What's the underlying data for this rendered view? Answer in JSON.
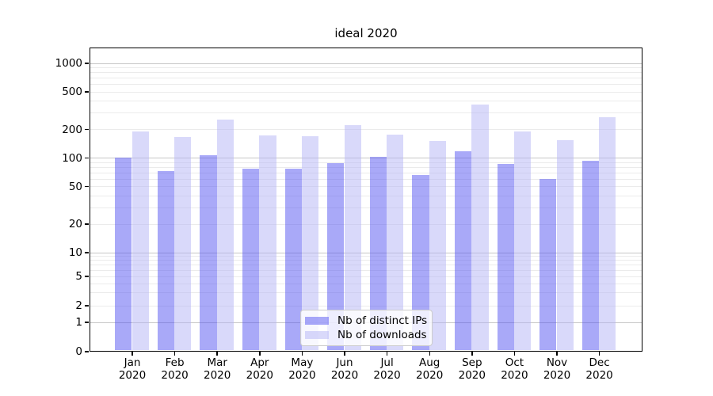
{
  "title": "ideal 2020",
  "legend": {
    "items": [
      {
        "label": "Nb of distinct IPs",
        "key": "distinct_ips"
      },
      {
        "label": "Nb of downloads",
        "key": "downloads"
      }
    ]
  },
  "colors": {
    "distinct_ips": "rgba(84,84,241,0.5)",
    "downloads": "rgba(179,179,245,0.5)",
    "distinct_ips_hex": "#a9a9f8",
    "downloads_hex": "#d9d9fa",
    "grid_major": "#c6c6c6",
    "grid_minor": "#ebebeb",
    "axis": "#000000"
  },
  "chart_data": {
    "type": "bar",
    "title": "ideal 2020",
    "categories": [
      "Jan 2020",
      "Feb 2020",
      "Mar 2020",
      "Apr 2020",
      "May 2020",
      "Jun 2020",
      "Jul 2020",
      "Aug 2020",
      "Sep 2020",
      "Oct 2020",
      "Nov 2020",
      "Dec 2020"
    ],
    "series": [
      {
        "name": "Nb of distinct IPs",
        "values": [
          100,
          72,
          106,
          77,
          77,
          87,
          102,
          65,
          117,
          86,
          60,
          93
        ]
      },
      {
        "name": "Nb of downloads",
        "values": [
          190,
          165,
          250,
          172,
          168,
          220,
          175,
          150,
          365,
          190,
          153,
          270
        ]
      }
    ],
    "yscale": "symlog",
    "y_ticks": [
      0,
      1,
      2,
      5,
      10,
      20,
      50,
      100,
      200,
      500,
      1000
    ],
    "ylim": [
      0,
      1400
    ],
    "grid": true,
    "legend_position": "lower center"
  }
}
